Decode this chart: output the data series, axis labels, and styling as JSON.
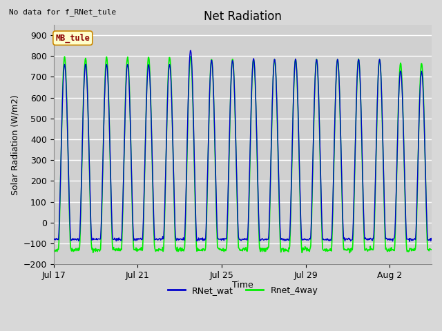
{
  "title": "Net Radiation",
  "xlabel": "Time",
  "ylabel": "Solar Radiation (W/m2)",
  "top_left_text": "No data for f_RNet_tule",
  "legend_box_label": "MB_tule",
  "legend_labels": [
    "RNet_wat",
    "Rnet_4way"
  ],
  "legend_colors": [
    "#0000cc",
    "#00ee00"
  ],
  "ylim": [
    -200,
    950
  ],
  "yticks": [
    -200,
    -100,
    0,
    100,
    200,
    300,
    400,
    500,
    600,
    700,
    800,
    900
  ],
  "xtick_labels": [
    "Jul 17",
    "Jul 21",
    "Jul 25",
    "Jul 29",
    "Aug 2"
  ],
  "background_color": "#d8d8d8",
  "plot_bg_color": "#d0d0d0",
  "grid_color": "#c0c0c0",
  "title_fontsize": 12,
  "axis_fontsize": 9,
  "n_days": 18,
  "peaks_blue": [
    760,
    760,
    760,
    760,
    760,
    760,
    830,
    780,
    780,
    790,
    785,
    785,
    785,
    785,
    785,
    785,
    730,
    725
  ],
  "peaks_green": [
    795,
    790,
    795,
    795,
    795,
    795,
    800,
    785,
    785,
    785,
    785,
    785,
    785,
    785,
    785,
    785,
    765,
    765
  ],
  "night_blue": -80,
  "night_green": -130
}
